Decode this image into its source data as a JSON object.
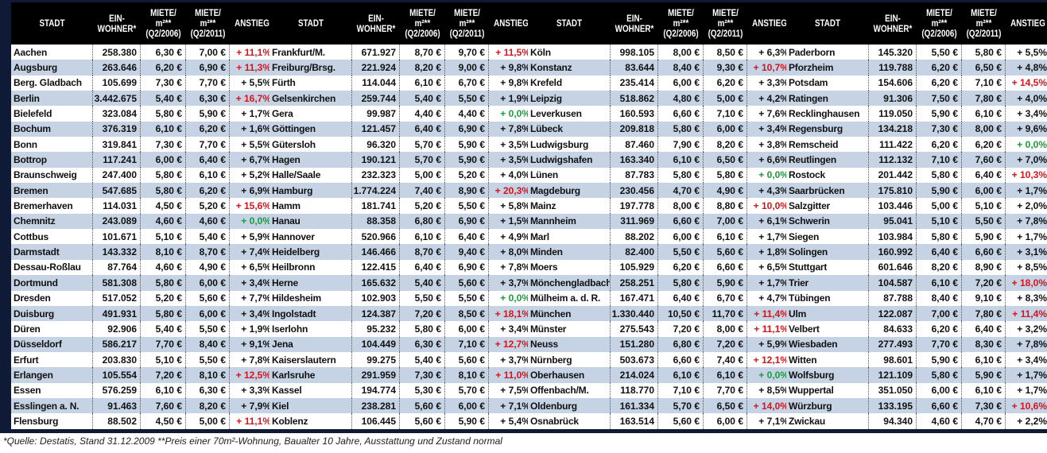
{
  "headers": {
    "stadt": "STADT",
    "einwohner": "EIN-WOHNER*",
    "miete2006": "MIETE/ m²** (Q2/2006)",
    "miete2011": "MIETE/ m²** (Q2/2011)",
    "anstieg": "ANSTIEG"
  },
  "colors": {
    "high_increase": "#d4141b",
    "zero_increase": "#1a9a3a",
    "row_alt": "#c6d3e5",
    "header_bg": "#000000",
    "frame": "#0e1a36"
  },
  "tables": [
    {
      "rows": [
        [
          "Aachen",
          "258.380",
          "6,30 €",
          "7,00 €",
          "+ 11,1%"
        ],
        [
          "Augsburg",
          "263.646",
          "6,20 €",
          "6,90 €",
          "+ 11,3%"
        ],
        [
          "Berg. Gladbach",
          "105.699",
          "7,30 €",
          "7,70 €",
          "+ 5,5%"
        ],
        [
          "Berlin",
          "3.442.675",
          "5,40 €",
          "6,30 €",
          "+ 16,7%"
        ],
        [
          "Bielefeld",
          "323.084",
          "5,80 €",
          "5,90 €",
          "+ 1,7%"
        ],
        [
          "Bochum",
          "376.319",
          "6,10 €",
          "6,20 €",
          "+ 1,6%"
        ],
        [
          "Bonn",
          "319.841",
          "7,30 €",
          "7,70 €",
          "+ 5,5%"
        ],
        [
          "Bottrop",
          "117.241",
          "6,00 €",
          "6,40 €",
          "+ 6,7%"
        ],
        [
          "Braunschweig",
          "247.400",
          "5,80 €",
          "6,10 €",
          "+ 5,2%"
        ],
        [
          "Bremen",
          "547.685",
          "5,80 €",
          "6,20 €",
          "+ 6,9%"
        ],
        [
          "Bremerhaven",
          "114.031",
          "4,50 €",
          "5,20 €",
          "+ 15,6%"
        ],
        [
          "Chemnitz",
          "243.089",
          "4,60 €",
          "4,60 €",
          "+ 0,0%"
        ],
        [
          "Cottbus",
          "101.671",
          "5,10 €",
          "5,40 €",
          "+ 5,9%"
        ],
        [
          "Darmstadt",
          "143.332",
          "8,10 €",
          "8,70 €",
          "+ 7,4%"
        ],
        [
          "Dessau-Roßlau",
          "87.764",
          "4,60 €",
          "4,90 €",
          "+ 6,5%"
        ],
        [
          "Dortmund",
          "581.308",
          "5,80 €",
          "6,00 €",
          "+ 3,4%"
        ],
        [
          "Dresden",
          "517.052",
          "5,20 €",
          "5,60 €",
          "+ 7,7%"
        ],
        [
          "Duisburg",
          "491.931",
          "5,80 €",
          "6,00 €",
          "+ 3,4%"
        ],
        [
          "Düren",
          "92.906",
          "5,40 €",
          "5,50 €",
          "+ 1,9%"
        ],
        [
          "Düsseldorf",
          "586.217",
          "7,70 €",
          "8,40 €",
          "+ 9,1%"
        ],
        [
          "Erfurt",
          "203.830",
          "5,10 €",
          "5,50 €",
          "+ 7,8%"
        ],
        [
          "Erlangen",
          "105.554",
          "7,20 €",
          "8,10 €",
          "+ 12,5%"
        ],
        [
          "Essen",
          "576.259",
          "6,10 €",
          "6,30 €",
          "+ 3,3%"
        ],
        [
          "Esslingen a. N.",
          "91.463",
          "7,60 €",
          "8,20 €",
          "+ 7,9%"
        ],
        [
          "Flensburg",
          "88.502",
          "4,50 €",
          "5,00 €",
          "+ 11,1%"
        ]
      ]
    },
    {
      "rows": [
        [
          "Frankfurt/M.",
          "671.927",
          "8,70 €",
          "9,70 €",
          "+ 11,5%"
        ],
        [
          "Freiburg/Brsg.",
          "221.924",
          "8,20 €",
          "9,00 €",
          "+ 9,8%"
        ],
        [
          "Fürth",
          "114.044",
          "6,10 €",
          "6,70 €",
          "+ 9,8%"
        ],
        [
          "Gelsenkirchen",
          "259.744",
          "5,40 €",
          "5,50 €",
          "+ 1,9%"
        ],
        [
          "Gera",
          "99.987",
          "4,40 €",
          "4,40 €",
          "+ 0,0%"
        ],
        [
          "Göttingen",
          "121.457",
          "6,40 €",
          "6,90 €",
          "+ 7,8%"
        ],
        [
          "Gütersloh",
          "96.320",
          "5,70 €",
          "5,90 €",
          "+ 3,5%"
        ],
        [
          "Hagen",
          "190.121",
          "5,70 €",
          "5,90 €",
          "+ 3,5%"
        ],
        [
          "Halle/Saale",
          "232.323",
          "5,00 €",
          "5,20 €",
          "+ 4,0%"
        ],
        [
          "Hamburg",
          "1.774.224",
          "7,40 €",
          "8,90 €",
          "+ 20,3%"
        ],
        [
          "Hamm",
          "181.741",
          "5,20 €",
          "5,50 €",
          "+ 5,8%"
        ],
        [
          "Hanau",
          "88.358",
          "6,80 €",
          "6,90 €",
          "+ 1,5%"
        ],
        [
          "Hannover",
          "520.966",
          "6,10 €",
          "6,40 €",
          "+ 4,9%"
        ],
        [
          "Heidelberg",
          "146.466",
          "8,70 €",
          "9,40 €",
          "+ 8,0%"
        ],
        [
          "Heilbronn",
          "122.415",
          "6,40 €",
          "6,90 €",
          "+ 7,8%"
        ],
        [
          "Herne",
          "165.632",
          "5,40 €",
          "5,60 €",
          "+ 3,7%"
        ],
        [
          "Hildesheim",
          "102.903",
          "5,50 €",
          "5,50 €",
          "+ 0,0%"
        ],
        [
          "Ingolstadt",
          "124.387",
          "7,20 €",
          "8,50 €",
          "+ 18,1%"
        ],
        [
          "Iserlohn",
          "95.232",
          "5,80 €",
          "6,00 €",
          "+ 3,4%"
        ],
        [
          "Jena",
          "104.449",
          "6,30 €",
          "7,10 €",
          "+ 12,7%"
        ],
        [
          "Kaiserslautern",
          "99.275",
          "5,40 €",
          "5,60 €",
          "+ 3,7%"
        ],
        [
          "Karlsruhe",
          "291.959",
          "7,30 €",
          "8,10 €",
          "+ 11,0%"
        ],
        [
          "Kassel",
          "194.774",
          "5,30 €",
          "5,70 €",
          "+ 7,5%"
        ],
        [
          "Kiel",
          "238.281",
          "5,60 €",
          "6,00 €",
          "+ 7,1%"
        ],
        [
          "Koblenz",
          "106.445",
          "5,60 €",
          "5,90 €",
          "+ 5,4%"
        ]
      ]
    },
    {
      "rows": [
        [
          "Köln",
          "998.105",
          "8,00 €",
          "8,50 €",
          "+ 6,3%"
        ],
        [
          "Konstanz",
          "83.644",
          "8,40 €",
          "9,30 €",
          "+ 10,7%"
        ],
        [
          "Krefeld",
          "235.414",
          "6,00 €",
          "6,20 €",
          "+ 3,3%"
        ],
        [
          "Leipzig",
          "518.862",
          "4,80 €",
          "5,00 €",
          "+ 4,2%"
        ],
        [
          "Leverkusen",
          "160.593",
          "6,60 €",
          "7,10 €",
          "+ 7,6%"
        ],
        [
          "Lübeck",
          "209.818",
          "5,80 €",
          "6,00 €",
          "+ 3,4%"
        ],
        [
          "Ludwigsburg",
          "87.460",
          "7,90 €",
          "8,20 €",
          "+ 3,8%"
        ],
        [
          "Ludwigshafen",
          "163.340",
          "6,10 €",
          "6,50 €",
          "+ 6,6%"
        ],
        [
          "Lünen",
          "87.783",
          "5,80 €",
          "5,80 €",
          "+ 0,0%"
        ],
        [
          "Magdeburg",
          "230.456",
          "4,70 €",
          "4,90 €",
          "+ 4,3%"
        ],
        [
          "Mainz",
          "197.778",
          "8,00 €",
          "8,80 €",
          "+ 10,0%"
        ],
        [
          "Mannheim",
          "311.969",
          "6,60 €",
          "7,00 €",
          "+ 6,1%"
        ],
        [
          "Marl",
          "88.202",
          "6,00 €",
          "6,10 €",
          "+ 1,7%"
        ],
        [
          "Minden",
          "82.400",
          "5,50 €",
          "5,60 €",
          "+ 1,8%"
        ],
        [
          "Moers",
          "105.929",
          "6,20 €",
          "6,60 €",
          "+ 6,5%"
        ],
        [
          "Mönchengladbach",
          "258.251",
          "5,80 €",
          "5,90 €",
          "+ 1,7%"
        ],
        [
          "Mülheim a. d. R.",
          "167.471",
          "6,40 €",
          "6,70 €",
          "+ 4,7%"
        ],
        [
          "München",
          "1.330.440",
          "10,50 €",
          "11,70 €",
          "+ 11,4%"
        ],
        [
          "Münster",
          "275.543",
          "7,20 €",
          "8,00 €",
          "+ 11,1%"
        ],
        [
          "Neuss",
          "151.280",
          "6,80 €",
          "7,20 €",
          "+ 5,9%"
        ],
        [
          "Nürnberg",
          "503.673",
          "6,60 €",
          "7,40 €",
          "+ 12,1%"
        ],
        [
          "Oberhausen",
          "214.024",
          "6,10 €",
          "6,10 €",
          "+ 0,0%"
        ],
        [
          "Offenbach/M.",
          "118.770",
          "7,10 €",
          "7,70 €",
          "+ 8,5%"
        ],
        [
          "Oldenburg",
          "161.334",
          "5,70 €",
          "6,50 €",
          "+ 14,0%"
        ],
        [
          "Osnabrück",
          "163.514",
          "5,60 €",
          "6,00 €",
          "+ 7,1%"
        ]
      ]
    },
    {
      "rows": [
        [
          "Paderborn",
          "145.320",
          "5,50 €",
          "5,80 €",
          "+ 5,5%"
        ],
        [
          "Pforzheim",
          "119.788",
          "6,20 €",
          "6,50 €",
          "+ 4,8%"
        ],
        [
          "Potsdam",
          "154.606",
          "6,20 €",
          "7,10 €",
          "+ 14,5%"
        ],
        [
          "Ratingen",
          "91.306",
          "7,50 €",
          "7,80 €",
          "+ 4,0%"
        ],
        [
          "Recklinghausen",
          "119.050",
          "5,90 €",
          "6,10 €",
          "+ 3,4%"
        ],
        [
          "Regensburg",
          "134.218",
          "7,30 €",
          "8,00 €",
          "+ 9,6%"
        ],
        [
          "Remscheid",
          "111.422",
          "6,20 €",
          "6,20 €",
          "+ 0,0%"
        ],
        [
          "Reutlingen",
          "112.132",
          "7,10 €",
          "7,60 €",
          "+ 7,0%"
        ],
        [
          "Rostock",
          "201.442",
          "5,80 €",
          "6,40 €",
          "+ 10,3%"
        ],
        [
          "Saarbrücken",
          "175.810",
          "5,90 €",
          "6,00 €",
          "+ 1,7%"
        ],
        [
          "Salzgitter",
          "103.446",
          "5,00 €",
          "5,10 €",
          "+ 2,0%"
        ],
        [
          "Schwerin",
          "95.041",
          "5,10 €",
          "5,50 €",
          "+ 7,8%"
        ],
        [
          "Siegen",
          "103.984",
          "5,80 €",
          "5,90 €",
          "+ 1,7%"
        ],
        [
          "Solingen",
          "160.992",
          "6,40 €",
          "6,60 €",
          "+ 3,1%"
        ],
        [
          "Stuttgart",
          "601.646",
          "8,20 €",
          "8,90 €",
          "+ 8,5%"
        ],
        [
          "Trier",
          "104.587",
          "6,10 €",
          "7,20 €",
          "+ 18,0%"
        ],
        [
          "Tübingen",
          "87.788",
          "8,40 €",
          "9,10 €",
          "+ 8,3%"
        ],
        [
          "Ulm",
          "122.087",
          "7,00 €",
          "7,80 €",
          "+ 11,4%"
        ],
        [
          "Velbert",
          "84.633",
          "6,20 €",
          "6,40 €",
          "+ 3,2%"
        ],
        [
          "Wiesbaden",
          "277.493",
          "7,70 €",
          "8,30 €",
          "+ 7,8%"
        ],
        [
          "Witten",
          "98.601",
          "5,90 €",
          "6,10 €",
          "+ 3,4%"
        ],
        [
          "Wolfsburg",
          "121.109",
          "5,80 €",
          "5,90 €",
          "+ 1,7%"
        ],
        [
          "Wuppertal",
          "351.050",
          "6,00 €",
          "6,10 €",
          "+ 1,7%"
        ],
        [
          "Würzburg",
          "133.195",
          "6,60 €",
          "7,30 €",
          "+ 10,6%"
        ],
        [
          "Zwickau",
          "94.340",
          "4,60 €",
          "4,70 €",
          "+ 2,2%"
        ]
      ]
    }
  ],
  "footnote": "*Quelle: Destatis, Stand 31.12.2009 **Preis einer 70m²-Wohnung, Baualter 10 Jahre, Ausstattung und Zustand normal"
}
